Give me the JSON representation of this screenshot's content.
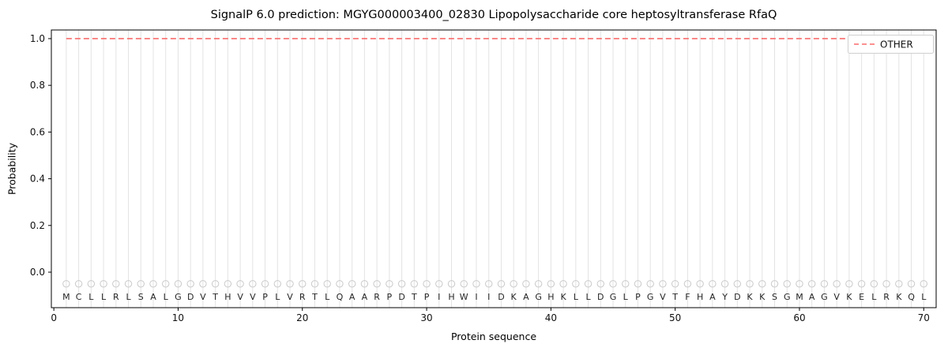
{
  "chart_data": {
    "type": "line",
    "title": "SignalP 6.0 prediction: MGYG000003400_02830 Lipopolysaccharide core heptosyltransferase RfaQ",
    "xlabel": "Protein sequence",
    "ylabel": "Probability",
    "xlim": [
      -0.2,
      71.0
    ],
    "ylim": [
      -0.152,
      1.037
    ],
    "xticks": [
      0,
      10,
      20,
      30,
      40,
      50,
      60,
      70
    ],
    "yticks": [
      0.0,
      0.2,
      0.4,
      0.6,
      0.8,
      1.0
    ],
    "grid": "vertical-line-per-residue",
    "sequence": [
      "M",
      "C",
      "L",
      "L",
      "R",
      "L",
      "S",
      "A",
      "L",
      "G",
      "D",
      "V",
      "T",
      "H",
      "V",
      "V",
      "P",
      "L",
      "V",
      "R",
      "T",
      "L",
      "Q",
      "A",
      "A",
      "R",
      "P",
      "D",
      "T",
      "P",
      "I",
      "H",
      "W",
      "I",
      "I",
      "D",
      "K",
      "A",
      "G",
      "H",
      "K",
      "L",
      "L",
      "D",
      "G",
      "L",
      "P",
      "G",
      "V",
      "T",
      "F",
      "H",
      "A",
      "Y",
      "D",
      "K",
      "K",
      "S",
      "G",
      "M",
      "A",
      "G",
      "V",
      "K",
      "E",
      "L",
      "R",
      "K",
      "Q",
      "L"
    ],
    "series": [
      {
        "name": "OTHER",
        "style": "dashed",
        "color": "#f96c6c",
        "y_constant": 1.0,
        "x_range": [
          1,
          70
        ]
      }
    ],
    "residue_markers": {
      "shape": "open-circle",
      "y": -0.05,
      "color": "#c9c9c9"
    },
    "legend": {
      "position": "upper-right",
      "entries": [
        {
          "label": "OTHER",
          "color": "#f96c6c",
          "style": "dashed"
        }
      ]
    },
    "colors": {
      "grid": "#e3e3e3",
      "spine": "#000000",
      "tick_label": "#111111",
      "residue_letter": "#262626",
      "legend_border": "#cfcfcf",
      "background": "#ffffff"
    }
  }
}
